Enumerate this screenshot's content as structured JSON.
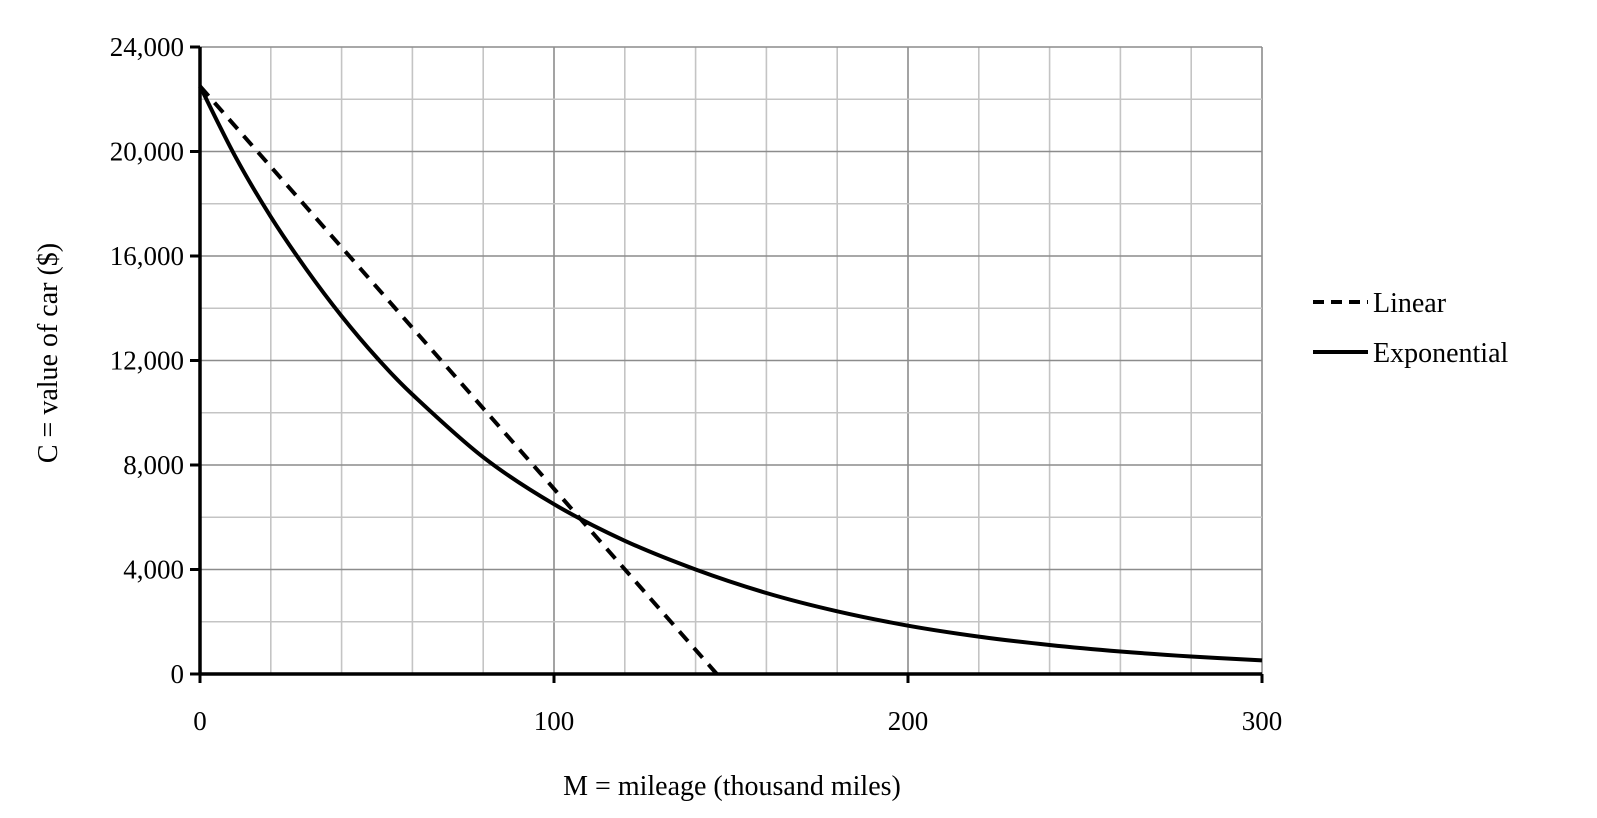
{
  "chart_data": {
    "type": "line",
    "title": "",
    "xlabel": "M = mileage (thousand miles)",
    "ylabel": "C = value of car ($)",
    "xlim": [
      0,
      300
    ],
    "ylim": [
      0,
      24000
    ],
    "x_ticks": [
      0,
      100,
      200,
      300
    ],
    "x_tick_labels": [
      "0",
      "100",
      "200",
      "300"
    ],
    "y_ticks": [
      0,
      4000,
      8000,
      12000,
      16000,
      20000,
      24000
    ],
    "y_tick_labels": [
      "0",
      "4,000",
      "8,000",
      "12,000",
      "16,000",
      "20,000",
      "24,000"
    ],
    "x_minor_step": 20,
    "y_minor_step": 2000,
    "grid": true,
    "legend_position": "right",
    "series": [
      {
        "name": "Linear",
        "style": "dashed",
        "color": "#000000",
        "x": [
          0,
          146
        ],
        "y": [
          22500,
          0
        ]
      },
      {
        "name": "Exponential",
        "style": "solid",
        "color": "#000000",
        "x": [
          0,
          10,
          20,
          30,
          40,
          50,
          60,
          80,
          100,
          120,
          140,
          160,
          180,
          200,
          220,
          240,
          260,
          280,
          300
        ],
        "y": [
          22500,
          19800,
          17500,
          15500,
          13700,
          12100,
          10700,
          8300,
          6500,
          5100,
          4000,
          3100,
          2400,
          1850,
          1430,
          1110,
          860,
          670,
          520
        ]
      }
    ]
  }
}
